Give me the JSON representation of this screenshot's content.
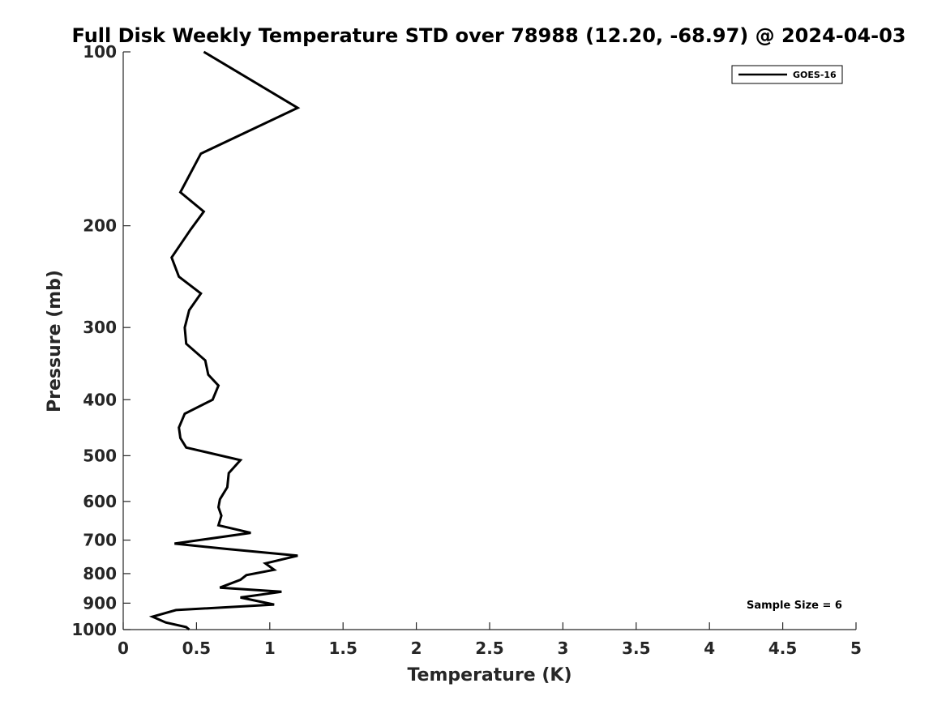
{
  "chart_data": {
    "type": "line",
    "title": "Full Disk Weekly Temperature STD over 78988 (12.20, -68.97) @ 2024-04-03",
    "xlabel": "Temperature (K)",
    "ylabel": "Pressure (mb)",
    "xlim": [
      0,
      5
    ],
    "ylim": [
      1000,
      100
    ],
    "y_scale": "log",
    "y_reversed": true,
    "x_ticks": [
      "0",
      "0.5",
      "1",
      "1.5",
      "2",
      "2.5",
      "3",
      "3.5",
      "4",
      "4.5",
      "5"
    ],
    "y_ticks": [
      "100",
      "200",
      "300",
      "400",
      "500",
      "600",
      "700",
      "800",
      "900",
      "1000"
    ],
    "grid": false,
    "legend_position": "top-right",
    "series": [
      {
        "name": "GOES-16",
        "color": "#000000",
        "points": [
          [
            0.55,
            100
          ],
          [
            1.19,
            125
          ],
          [
            0.53,
            150
          ],
          [
            0.39,
            175
          ],
          [
            0.55,
            189
          ],
          [
            0.46,
            203
          ],
          [
            0.33,
            227
          ],
          [
            0.38,
            245
          ],
          [
            0.53,
            262
          ],
          [
            0.45,
            280
          ],
          [
            0.42,
            300
          ],
          [
            0.43,
            320
          ],
          [
            0.56,
            342
          ],
          [
            0.58,
            362
          ],
          [
            0.65,
            378
          ],
          [
            0.61,
            400
          ],
          [
            0.42,
            423
          ],
          [
            0.38,
            447
          ],
          [
            0.39,
            466
          ],
          [
            0.43,
            484
          ],
          [
            0.8,
            509
          ],
          [
            0.72,
            536
          ],
          [
            0.71,
            567
          ],
          [
            0.66,
            595
          ],
          [
            0.65,
            614
          ],
          [
            0.67,
            635
          ],
          [
            0.65,
            660
          ],
          [
            0.87,
            680
          ],
          [
            0.35,
            710
          ],
          [
            0.7,
            725
          ],
          [
            1.19,
            745
          ],
          [
            0.97,
            768
          ],
          [
            1.03,
            788
          ],
          [
            0.84,
            805
          ],
          [
            0.8,
            820
          ],
          [
            0.66,
            846
          ],
          [
            1.08,
            860
          ],
          [
            0.8,
            880
          ],
          [
            1.03,
            905
          ],
          [
            0.36,
            925
          ],
          [
            0.2,
            950
          ],
          [
            0.29,
            972
          ],
          [
            0.43,
            990
          ],
          [
            0.45,
            1000
          ]
        ]
      }
    ],
    "annotations": [
      "Sample Size = 6"
    ]
  }
}
